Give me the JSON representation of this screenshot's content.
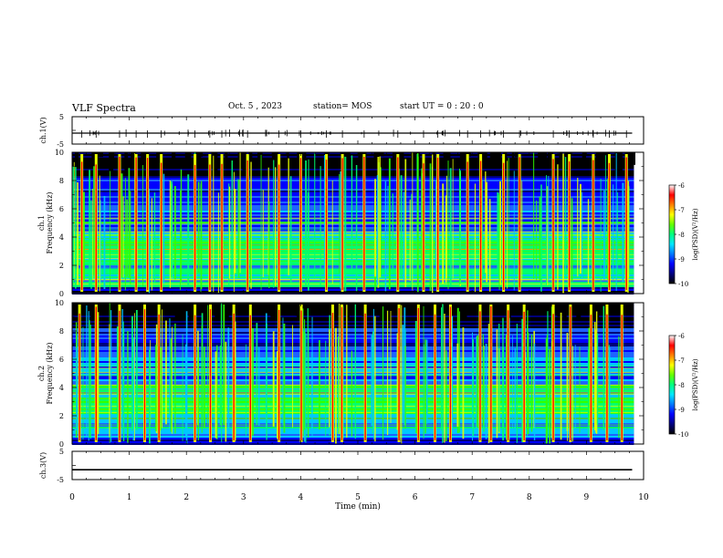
{
  "header": {
    "title": "VLF Spectra",
    "date": "Oct. 5 , 2023",
    "station": "station= MOS",
    "start_time": "start UT = 0 : 20 : 0"
  },
  "chart_data": [
    {
      "type": "line",
      "panel": "ch1-voltage",
      "ylabel": "ch.1(V)",
      "ylim": [
        -5,
        5
      ],
      "yticks": [
        "5",
        "-5"
      ],
      "xlim": [
        0,
        10
      ],
      "series": [
        {
          "values": [
            [
              0,
              -1
            ],
            [
              9.8,
              -1
            ]
          ]
        }
      ]
    },
    {
      "type": "heatmap",
      "panel": "ch1-spectrogram",
      "ylabel": "ch.1 Frequency (kHz)",
      "ylim": [
        0,
        10
      ],
      "yticks": [
        "0",
        "2",
        "4",
        "6",
        "8",
        "10"
      ],
      "xlim": [
        0,
        10
      ],
      "x_data_end": 9.83,
      "colorbar": {
        "label": "log(PSD)(V²/Hz)",
        "range": [
          -10,
          -6
        ],
        "ticks": [
          "-6",
          "-7",
          "-8",
          "-9",
          "-10"
        ]
      },
      "strong_bursts_min": [
        0.17,
        0.42,
        0.83,
        1.12,
        1.32,
        1.56,
        2.15,
        2.41,
        2.62,
        3.07,
        3.62,
        4.0,
        4.45,
        4.73,
        5.11,
        5.7,
        6.15,
        6.4,
        6.92,
        7.15,
        7.55,
        7.83,
        8.42,
        8.7,
        9.12,
        9.4,
        9.7
      ]
    },
    {
      "type": "heatmap",
      "panel": "ch2-spectrogram",
      "ylabel": "ch.2 Frequency (kHz)",
      "ylim": [
        0,
        10
      ],
      "yticks": [
        "0",
        "2",
        "4",
        "6",
        "8",
        "10"
      ],
      "xlim": [
        0,
        10
      ],
      "x_data_end": 9.83,
      "colorbar": {
        "label": "log(PSD)(V²/Hz)",
        "range": [
          -10,
          -6
        ],
        "ticks": [
          "-6",
          "-7",
          "-8",
          "-9",
          "-10"
        ]
      },
      "strong_bursts_min": [
        0.13,
        0.42,
        0.83,
        1.27,
        1.52,
        2.15,
        2.42,
        2.83,
        3.12,
        3.62,
        4.01,
        4.56,
        4.72,
        5.13,
        5.72,
        6.06,
        6.35,
        6.62,
        7.14,
        7.33,
        7.63,
        7.91,
        8.42,
        8.72,
        9.08,
        9.36,
        9.62
      ]
    },
    {
      "type": "line",
      "panel": "ch3-voltage",
      "ylabel": "ch.3(V)",
      "ylim": [
        -5,
        5
      ],
      "yticks": [
        "5",
        "-5"
      ],
      "xlim": [
        0,
        10
      ],
      "xlabel": "Time (min)",
      "xticks": [
        "0",
        "1",
        "2",
        "3",
        "4",
        "5",
        "6",
        "7",
        "8",
        "9",
        "10"
      ],
      "series": [
        {
          "values": [
            [
              0,
              -1.5
            ],
            [
              9.8,
              -1.5
            ]
          ]
        }
      ]
    }
  ],
  "colors": {
    "spectrogram_scale": [
      "#000000",
      "#00007a",
      "#0000ff",
      "#1e64ff",
      "#00c8ff",
      "#00ff6e",
      "#32ff00",
      "#e6ff00",
      "#ff5000",
      "#ff0000",
      "#ffffff"
    ]
  }
}
